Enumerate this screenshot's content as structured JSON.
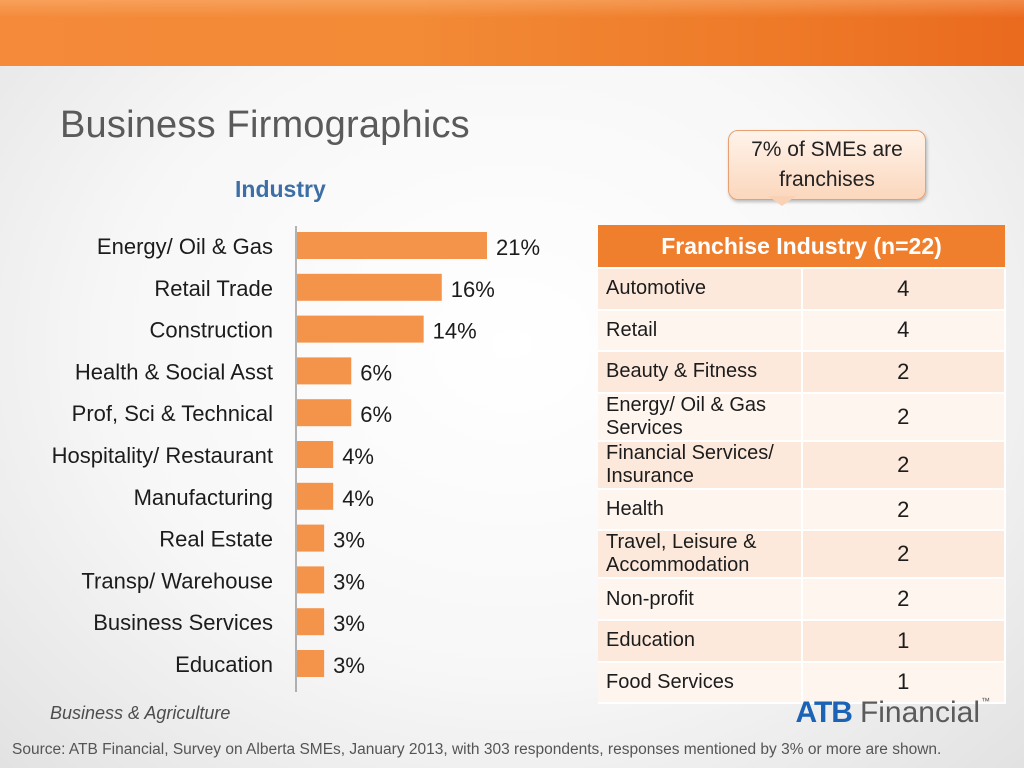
{
  "colors": {
    "accent": "#ef7f2c",
    "bar": "#f4944b",
    "title": "#5a5a5a",
    "subtitle": "#3d6fa6",
    "logo_blue": "#1a63b5"
  },
  "slide": {
    "title": "Business Firmographics",
    "callout": "7% of SMEs are franchises"
  },
  "chart_data": {
    "type": "bar",
    "orientation": "horizontal",
    "title": "Industry",
    "categories": [
      "Energy/ Oil & Gas",
      "Retail Trade",
      "Construction",
      "Health & Social Asst",
      "Prof, Sci & Technical",
      "Hospitality/ Restaurant",
      "Manufacturing",
      "Real Estate",
      "Transp/ Warehouse",
      "Business Services",
      "Education"
    ],
    "values": [
      21,
      16,
      14,
      6,
      6,
      4,
      4,
      3,
      3,
      3,
      3
    ],
    "value_labels": [
      "21%",
      "16%",
      "14%",
      "6%",
      "6%",
      "4%",
      "4%",
      "3%",
      "3%",
      "3%",
      "3%"
    ],
    "unit": "%",
    "xlim": [
      0,
      21
    ],
    "grid": false,
    "legend": "none"
  },
  "franchise_table": {
    "header": "Franchise Industry (n=22)",
    "rows": [
      {
        "industry": "Automotive",
        "count": "4"
      },
      {
        "industry": "Retail",
        "count": "4"
      },
      {
        "industry": "Beauty & Fitness",
        "count": "2"
      },
      {
        "industry": "Energy/ Oil & Gas Services",
        "count": "2"
      },
      {
        "industry": "Financial Services/ Insurance",
        "count": "2"
      },
      {
        "industry": "Health",
        "count": "2"
      },
      {
        "industry": "Travel, Leisure & Accommodation",
        "count": "2"
      },
      {
        "industry": "Non-profit",
        "count": "2"
      },
      {
        "industry": "Education",
        "count": "1"
      },
      {
        "industry": "Food Services",
        "count": "1"
      }
    ]
  },
  "footer": {
    "division": "Business & Agriculture",
    "logo_atb": "ATB",
    "logo_financial": "Financial",
    "logo_tm": "™",
    "source": "Source: ATB Financial, Survey on Alberta SMEs, January 2013, with 303 respondents, responses mentioned by 3% or more are shown."
  }
}
